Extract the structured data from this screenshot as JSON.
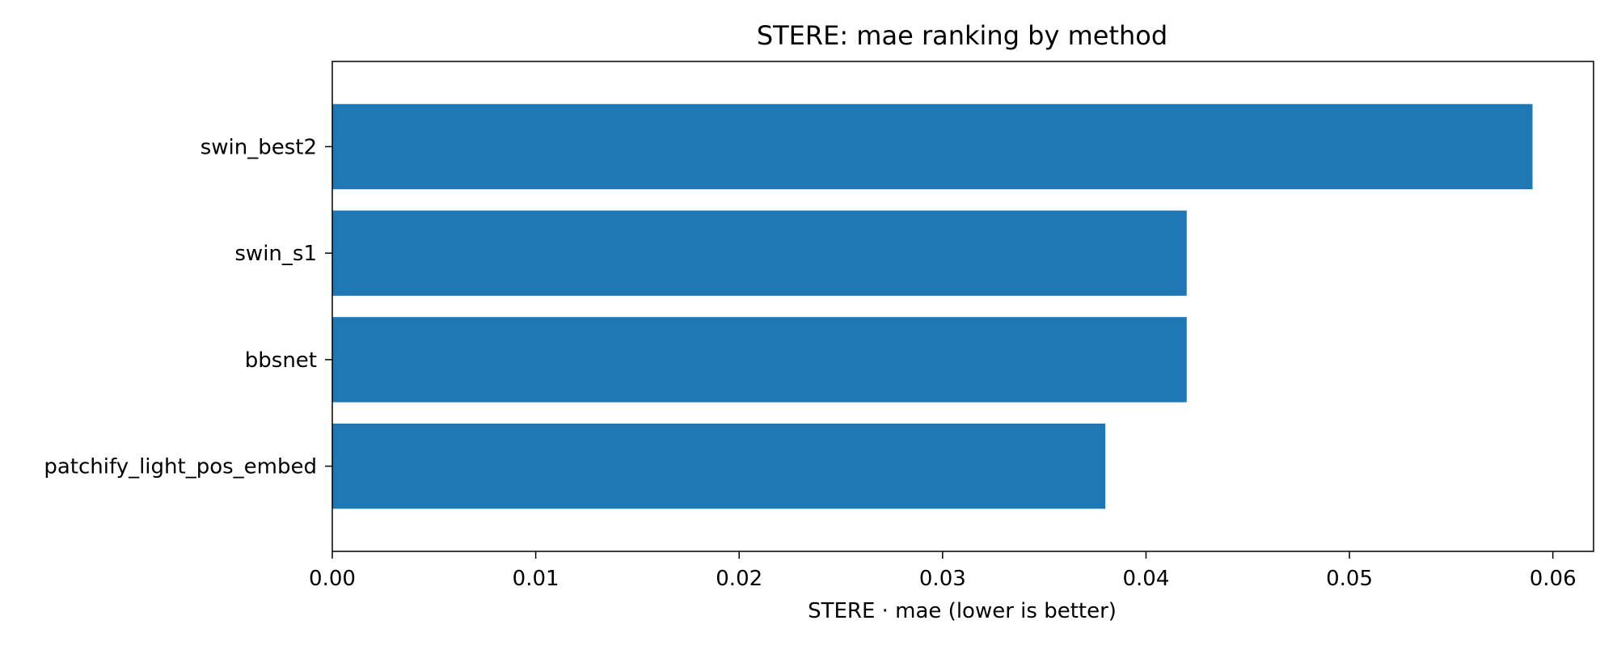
{
  "chart_data": {
    "type": "bar",
    "orientation": "horizontal",
    "title": "STERE: mae ranking by method",
    "xlabel": "STERE · mae (lower is better)",
    "ylabel": "",
    "categories": [
      "swin_best2",
      "swin_s1",
      "bbsnet",
      "patchify_light_pos_embed"
    ],
    "values": [
      0.059,
      0.042,
      0.042,
      0.038
    ],
    "xlim": [
      0,
      0.062
    ],
    "xticks": [
      0.0,
      0.01,
      0.02,
      0.03,
      0.04,
      0.05,
      0.06
    ],
    "xtick_labels": [
      "0.00",
      "0.01",
      "0.02",
      "0.03",
      "0.04",
      "0.05",
      "0.06"
    ],
    "grid": false,
    "bar_color": "#1f77b4"
  }
}
